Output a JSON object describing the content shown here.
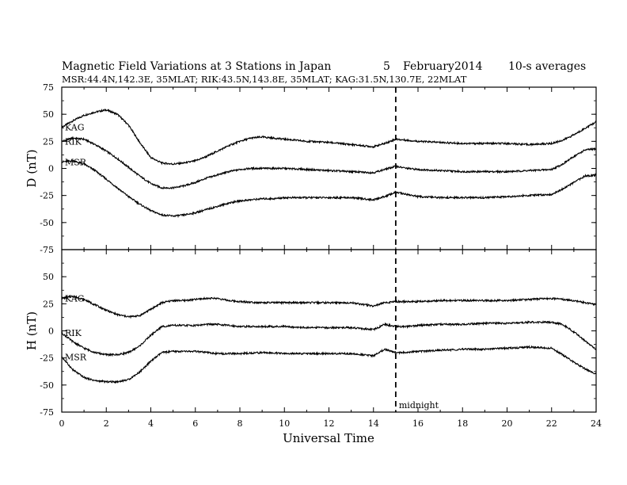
{
  "chart_data": {
    "type": "line",
    "title": "Magnetic Field Variations at 3 Stations in Japan",
    "date_day": "5",
    "date_month_year": "February2014",
    "averaging": "10-s averages",
    "subtitle": "MSR:44.4N,142.3E, 35MLAT;  RIK:43.5N,143.8E, 35MLAT;  KAG:31.5N,130.7E, 22MLAT",
    "xlabel": "Universal Time",
    "xlim": [
      0,
      24
    ],
    "xticks": [
      "0",
      "2",
      "4",
      "6",
      "8",
      "10",
      "12",
      "14",
      "16",
      "18",
      "20",
      "22",
      "24"
    ],
    "marker": {
      "x": 15,
      "label": "midnight"
    },
    "panels": [
      {
        "ylabel": "D (nT)",
        "ylim": [
          -75,
          75
        ],
        "yticks": [
          "75",
          "50",
          "25",
          "0",
          "-25",
          "-50",
          "-75"
        ],
        "series": [
          {
            "name": "KAG",
            "x": [
              0,
              0.5,
              1,
              1.5,
              2,
              2.5,
              3,
              3.5,
              4,
              4.5,
              5,
              5.5,
              6,
              6.5,
              7,
              7.5,
              8,
              8.5,
              9,
              9.5,
              10,
              11,
              12,
              13,
              14,
              14.5,
              15,
              15.5,
              16,
              17,
              18,
              19,
              20,
              21,
              22,
              22.5,
              23,
              23.5,
              24
            ],
            "y": [
              38,
              44,
              49,
              52,
              54,
              50,
              40,
              24,
              10,
              5,
              4,
              5,
              7,
              11,
              16,
              21,
              25,
              28,
              29,
              28,
              27,
              25,
              24,
              22,
              20,
              23,
              27,
              26,
              25,
              24,
              23,
              23,
              23,
              22,
              23,
              26,
              31,
              37,
              43
            ]
          },
          {
            "name": "RIK",
            "x": [
              0,
              0.5,
              1,
              1.5,
              2,
              2.5,
              3,
              3.5,
              4,
              4.5,
              5,
              5.5,
              6,
              6.5,
              7,
              7.5,
              8,
              8.5,
              9,
              9.5,
              10,
              11,
              12,
              13,
              14,
              14.5,
              15,
              15.5,
              16,
              17,
              18,
              19,
              20,
              21,
              22,
              22.5,
              23,
              23.5,
              24
            ],
            "y": [
              25,
              28,
              27,
              22,
              16,
              9,
              1,
              -7,
              -14,
              -18,
              -18,
              -16,
              -13,
              -9,
              -6,
              -3,
              -1,
              0,
              0,
              0,
              0,
              -1,
              -2,
              -3,
              -4,
              -1,
              2,
              0,
              -1,
              -2,
              -3,
              -3,
              -3,
              -2,
              -1,
              4,
              11,
              17,
              18
            ]
          },
          {
            "name": "MSR",
            "x": [
              0,
              0.5,
              1,
              1.5,
              2,
              2.5,
              3,
              3.5,
              4,
              4.5,
              5,
              5.5,
              6,
              6.5,
              7,
              7.5,
              8,
              8.5,
              9,
              9.5,
              10,
              11,
              12,
              13,
              14,
              14.5,
              15,
              15.5,
              16,
              17,
              18,
              19,
              20,
              21,
              22,
              22.5,
              23,
              23.5,
              24
            ],
            "y": [
              6,
              7,
              4,
              -2,
              -10,
              -18,
              -26,
              -33,
              -39,
              -43,
              -44,
              -43,
              -41,
              -38,
              -35,
              -32,
              -30,
              -29,
              -28,
              -28,
              -27,
              -27,
              -27,
              -27,
              -29,
              -26,
              -22,
              -24,
              -26,
              -27,
              -27,
              -27,
              -26,
              -25,
              -24,
              -19,
              -13,
              -7,
              -6
            ]
          }
        ]
      },
      {
        "ylabel": "H (nT)",
        "ylim": [
          -75,
          75
        ],
        "yticks": [
          "75",
          "50",
          "25",
          "0",
          "-25",
          "-50",
          "-75"
        ],
        "series": [
          {
            "name": "KAG",
            "x": [
              0,
              0.5,
              1,
              1.5,
              2,
              2.5,
              3,
              3.5,
              4,
              4.5,
              5,
              5.5,
              6,
              6.5,
              7,
              7.5,
              8,
              9,
              10,
              11,
              12,
              13,
              14,
              14.5,
              15,
              15.5,
              16,
              17,
              18,
              19,
              20,
              21,
              22,
              22.5,
              23,
              23.5,
              24
            ],
            "y": [
              30,
              32,
              29,
              24,
              19,
              15,
              13,
              14,
              20,
              26,
              28,
              28,
              29,
              30,
              30,
              28,
              27,
              26,
              26,
              26,
              26,
              26,
              23,
              26,
              27,
              27,
              27,
              28,
              28,
              28,
              28,
              29,
              30,
              29,
              28,
              26,
              24
            ]
          },
          {
            "name": "RIK",
            "x": [
              0,
              0.5,
              1,
              1.5,
              2,
              2.5,
              3,
              3.5,
              4,
              4.5,
              5,
              5.5,
              6,
              6.5,
              7,
              7.5,
              8,
              9,
              10,
              11,
              12,
              13,
              14,
              14.5,
              15,
              15.5,
              16,
              17,
              18,
              19,
              20,
              21,
              22,
              22.5,
              23,
              23.5,
              24
            ],
            "y": [
              -2,
              -10,
              -16,
              -20,
              -22,
              -22,
              -20,
              -14,
              -4,
              4,
              5,
              5,
              5,
              6,
              6,
              5,
              4,
              4,
              4,
              3,
              3,
              3,
              1,
              6,
              4,
              4,
              5,
              6,
              6,
              7,
              7,
              8,
              8,
              6,
              -1,
              -9,
              -17
            ]
          },
          {
            "name": "MSR",
            "x": [
              0,
              0.5,
              1,
              1.5,
              2,
              2.5,
              3,
              3.5,
              4,
              4.5,
              5,
              5.5,
              6,
              6.5,
              7,
              7.5,
              8,
              9,
              10,
              11,
              12,
              13,
              14,
              14.5,
              15,
              15.5,
              16,
              17,
              18,
              19,
              20,
              21,
              22,
              22.5,
              23,
              23.5,
              24
            ],
            "y": [
              -24,
              -36,
              -43,
              -46,
              -47,
              -47,
              -45,
              -38,
              -28,
              -20,
              -19,
              -19,
              -19,
              -20,
              -21,
              -21,
              -21,
              -20,
              -21,
              -21,
              -21,
              -21,
              -23,
              -17,
              -20,
              -20,
              -19,
              -18,
              -17,
              -17,
              -16,
              -15,
              -16,
              -22,
              -29,
              -35,
              -40
            ]
          }
        ]
      }
    ]
  }
}
